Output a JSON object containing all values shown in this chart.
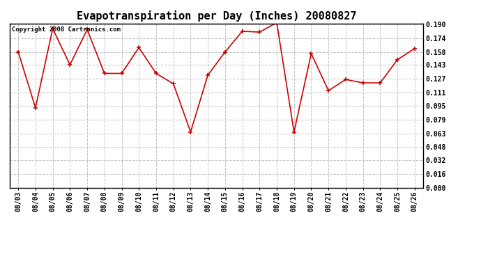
{
  "title": "Evapotranspiration per Day (Inches) 20080827",
  "copyright_text": "Copyright 2008 Cartronics.com",
  "dates": [
    "08/03",
    "08/04",
    "08/05",
    "08/06",
    "08/07",
    "08/08",
    "08/09",
    "08/10",
    "08/11",
    "08/12",
    "08/13",
    "08/14",
    "08/15",
    "08/16",
    "08/17",
    "08/18",
    "08/19",
    "08/20",
    "08/21",
    "08/22",
    "08/23",
    "08/24",
    "08/25",
    "08/26"
  ],
  "values": [
    0.158,
    0.093,
    0.185,
    0.143,
    0.184,
    0.133,
    0.133,
    0.163,
    0.133,
    0.121,
    0.065,
    0.131,
    0.158,
    0.182,
    0.181,
    0.192,
    0.065,
    0.156,
    0.113,
    0.126,
    0.122,
    0.122,
    0.149,
    0.162
  ],
  "ylim": [
    0.0,
    0.19
  ],
  "yticks": [
    0.0,
    0.016,
    0.032,
    0.048,
    0.063,
    0.079,
    0.095,
    0.111,
    0.127,
    0.143,
    0.158,
    0.174,
    0.19
  ],
  "line_color": "#cc0000",
  "marker": "+",
  "marker_size": 5,
  "bg_color": "#ffffff",
  "plot_bg_color": "#ffffff",
  "grid_color": "#bbbbbb",
  "title_fontsize": 11,
  "tick_fontsize": 7,
  "copyright_fontsize": 6.5
}
